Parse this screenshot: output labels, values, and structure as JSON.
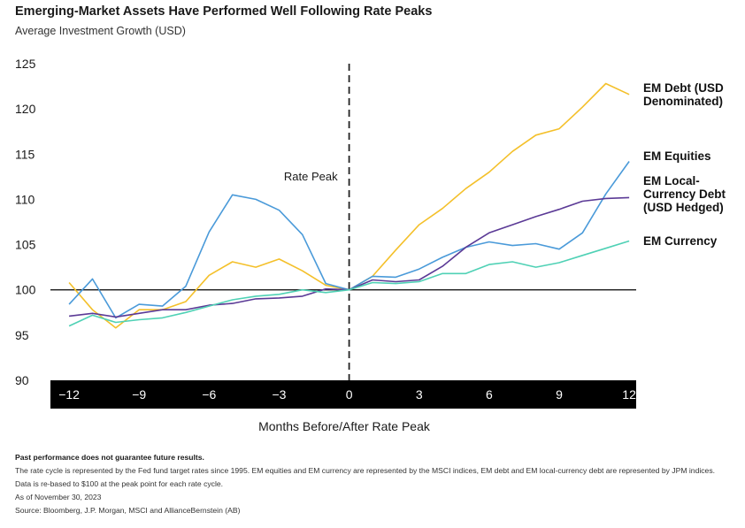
{
  "header": {
    "title": "Emerging-Market Assets Have Performed Well Following Rate Peaks",
    "subtitle": "Average Investment Growth (USD)"
  },
  "chart_data": {
    "type": "line",
    "title": "Emerging-Market Assets Have Performed Well Following Rate Peaks",
    "subtitle": "Average Investment Growth (USD)",
    "xlabel": "Months Before/After Rate Peak",
    "ylabel": "",
    "xlim": [
      -12.8,
      12.3
    ],
    "ylim": [
      90,
      125
    ],
    "x_ticks": [
      -12,
      -9,
      -6,
      -3,
      0,
      3,
      6,
      9,
      12
    ],
    "x_tick_labels": [
      "−12",
      "−9",
      "−6",
      "−3",
      "0",
      "3",
      "6",
      "9",
      "12"
    ],
    "y_ticks": [
      90,
      95,
      100,
      105,
      110,
      115,
      120,
      125
    ],
    "y_tick_labels": [
      "90",
      "95",
      "100",
      "105",
      "110",
      "115",
      "120",
      "125"
    ],
    "x": [
      -12,
      -11,
      -10,
      -9,
      -8,
      -7,
      -6,
      -5,
      -4,
      -3,
      -2,
      -1,
      0,
      1,
      2,
      3,
      4,
      5,
      6,
      7,
      8,
      9,
      10,
      11,
      12
    ],
    "series": [
      {
        "name": "EM Debt (USD Denominated)",
        "label_lines": [
          "EM Debt (USD",
          "Denominated)"
        ],
        "color": "#f4c02a",
        "values": [
          100.8,
          97.8,
          95.8,
          97.8,
          97.8,
          98.7,
          101.6,
          103.1,
          102.5,
          103.4,
          102.1,
          100.5,
          100.0,
          101.5,
          104.4,
          107.2,
          109.0,
          111.2,
          113.0,
          115.3,
          117.1,
          117.8,
          120.2,
          122.8,
          121.6
        ]
      },
      {
        "name": "EM Equities",
        "label_lines": [
          "EM Equities"
        ],
        "color": "#4a9ad9",
        "values": [
          98.4,
          101.2,
          96.9,
          98.4,
          98.2,
          100.4,
          106.4,
          110.5,
          110.0,
          108.8,
          106.1,
          100.7,
          100.0,
          101.5,
          101.4,
          102.3,
          103.6,
          104.7,
          105.3,
          104.9,
          105.1,
          104.5,
          106.3,
          110.6,
          114.2
        ]
      },
      {
        "name": "EM Local-Currency Debt (USD Hedged)",
        "label_lines": [
          "EM Local-",
          "Currency Debt",
          "(USD Hedged)"
        ],
        "color": "#5b3a96",
        "values": [
          97.1,
          97.4,
          97.0,
          97.4,
          97.8,
          97.8,
          98.3,
          98.5,
          99.0,
          99.1,
          99.3,
          100.1,
          100.0,
          101.1,
          100.9,
          101.1,
          102.6,
          104.7,
          106.3,
          107.2,
          108.1,
          108.9,
          109.8,
          110.1,
          110.2
        ]
      },
      {
        "name": "EM Currency",
        "label_lines": [
          "EM Currency"
        ],
        "color": "#4fd1b5",
        "values": [
          96.0,
          97.2,
          96.4,
          96.7,
          96.9,
          97.5,
          98.2,
          98.9,
          99.3,
          99.5,
          100.0,
          99.7,
          100.0,
          100.8,
          100.7,
          100.9,
          101.8,
          101.8,
          102.8,
          103.1,
          102.5,
          103.0,
          103.8,
          104.6,
          105.4
        ]
      }
    ],
    "annotations": [
      {
        "text": "Rate Peak",
        "x": 0
      }
    ],
    "reference_lines": {
      "vertical_x": 0,
      "horizontal_y": 100
    },
    "grid": false,
    "legend": "inline-right"
  },
  "footer": {
    "disclaimer": "Past performance does not guarantee future results.",
    "note1": "The rate cycle is represented by the Fed fund target rates since 1995. EM equities and EM currency are represented by the MSCI indices, EM debt and EM local-currency debt are represented by JPM indices.",
    "note2": "Data is re-based to $100 at the peak point for each rate cycle.",
    "asof": "As of November 30, 2023",
    "source": "Source: Bloomberg, J.P. Morgan, MSCI and AllianceBernstein (AB)"
  }
}
